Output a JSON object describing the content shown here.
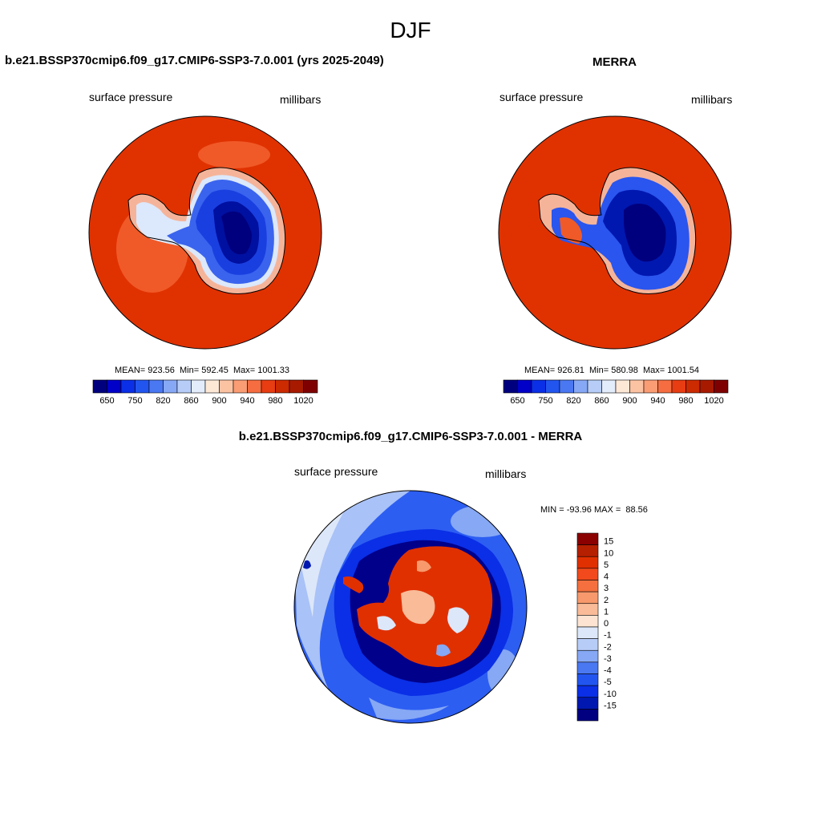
{
  "figure_title": "DJF",
  "panels": [
    {
      "title": "b.e21.BSSP370cmip6.f09_g17.CMIP6-SSP3-7.0.001 (yrs 2025-2049)",
      "field_label": "surface pressure",
      "units": "millibars",
      "stats": "MEAN= 923.56  Min= 592.45  Max= 1001.33"
    },
    {
      "title": "MERRA",
      "field_label": "surface pressure",
      "units": "millibars",
      "stats": "MEAN= 926.81  Min= 580.98  Max= 1001.54"
    },
    {
      "title": "b.e21.BSSP370cmip6.f09_g17.CMIP6-SSP3-7.0.001 - MERRA",
      "field_label": "surface pressure",
      "units": "millibars",
      "stats": "MIN = -93.96 MAX =  88.56"
    }
  ],
  "colorbar_horizontal": {
    "labels": [
      "650",
      "750",
      "820",
      "860",
      "900",
      "940",
      "980",
      "1020"
    ],
    "colors": [
      "#00007f",
      "#0000c8",
      "#0a2fe6",
      "#2255f0",
      "#4a78f2",
      "#86a8f5",
      "#b7cdf8",
      "#e2ecfb",
      "#fde8d6",
      "#fcc3a3",
      "#fa9c74",
      "#f56d40",
      "#e83c12",
      "#cc2a00",
      "#a81a00",
      "#7f0000"
    ]
  },
  "colorbar_vertical": {
    "labels": [
      "15",
      "10",
      "5",
      "4",
      "3",
      "2",
      "1",
      "0",
      "-1",
      "-2",
      "-3",
      "-4",
      "-5",
      "-10",
      "-15"
    ],
    "colors": [
      "#8b0000",
      "#b52000",
      "#e03000",
      "#f24a1c",
      "#f5703e",
      "#f7996c",
      "#f9bb98",
      "#fde4d2",
      "#dde7fa",
      "#b7cdf8",
      "#86a8f5",
      "#4a78f2",
      "#2255f0",
      "#0a2fe6",
      "#0018b0",
      "#000080"
    ]
  }
}
